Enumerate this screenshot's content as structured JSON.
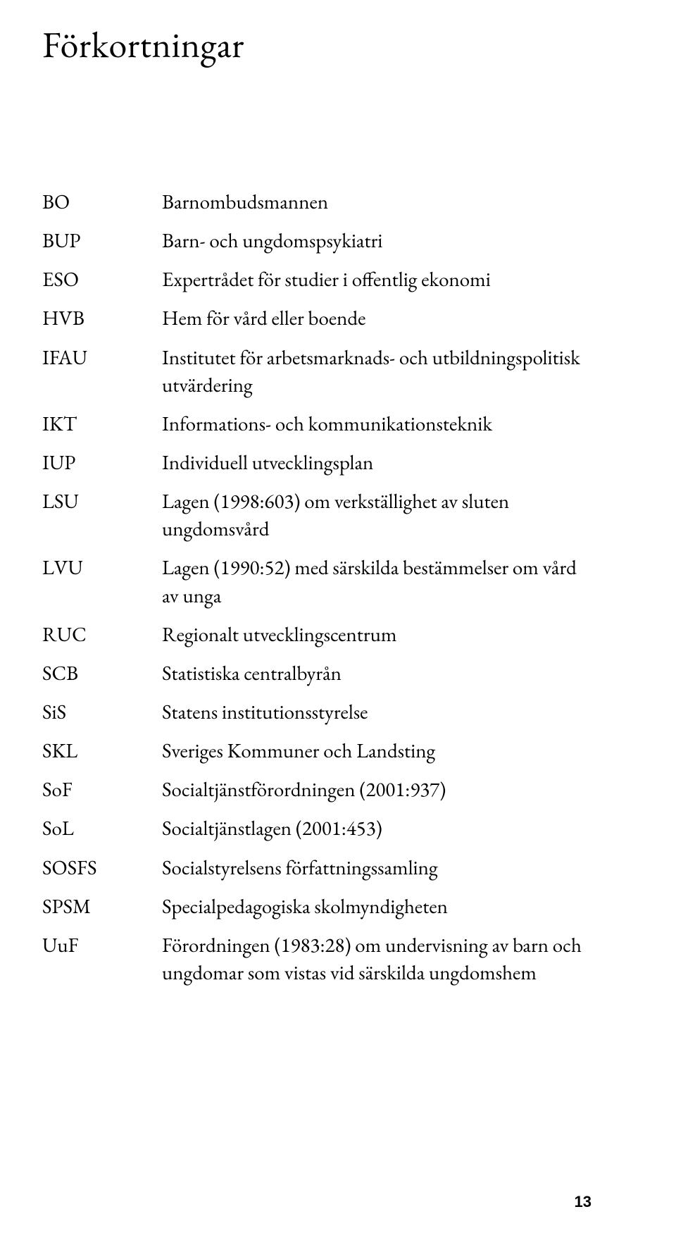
{
  "title": "Förkortningar",
  "pageNumber": "13",
  "entries": [
    {
      "abbr": "BO",
      "def": "Barnombudsmannen"
    },
    {
      "abbr": "BUP",
      "def": "Barn- och ungdomspsykiatri"
    },
    {
      "abbr": "ESO",
      "def": "Expertrådet för studier i offentlig ekonomi"
    },
    {
      "abbr": "HVB",
      "def": "Hem för vård eller boende"
    },
    {
      "abbr": "IFAU",
      "def": "Institutet för arbetsmarknads- och utbildningspolitisk utvärdering"
    },
    {
      "abbr": "IKT",
      "def": "Informations- och kommunikationsteknik"
    },
    {
      "abbr": "IUP",
      "def": "Individuell utvecklingsplan"
    },
    {
      "abbr": "LSU",
      "def": "Lagen (1998:603) om verkställighet av sluten ungdomsvård"
    },
    {
      "abbr": "LVU",
      "def": "Lagen (1990:52) med särskilda bestämmelser om vård av unga"
    },
    {
      "abbr": "RUC",
      "def": "Regionalt utvecklingscentrum"
    },
    {
      "abbr": "SCB",
      "def": "Statistiska centralbyrån"
    },
    {
      "abbr": "SiS",
      "def": "Statens institutionsstyrelse"
    },
    {
      "abbr": "SKL",
      "def": "Sveriges Kommuner och Landsting"
    },
    {
      "abbr": "SoF",
      "def": "Socialtjänstförordningen (2001:937)"
    },
    {
      "abbr": "SoL",
      "def": "Socialtjänstlagen (2001:453)"
    },
    {
      "abbr": "SOSFS",
      "def": "Socialstyrelsens författningssamling"
    },
    {
      "abbr": "SPSM",
      "def": "Specialpedagogiska skolmyndigheten"
    },
    {
      "abbr": "UuF",
      "def": "Förordningen (1983:28) om undervisning av barn och ungdomar som vistas vid särskilda ungdomshem"
    }
  ]
}
